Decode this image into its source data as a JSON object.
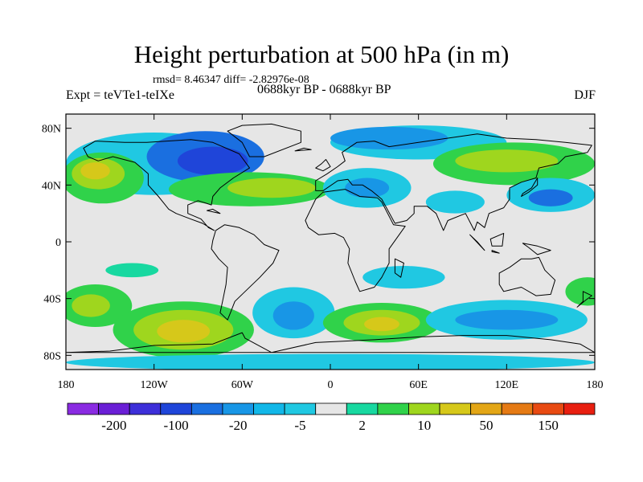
{
  "title": "Height perturbation at 500 hPa (in m)",
  "stats": "rmsd= 8.46347 diff= -2.82976e-08",
  "left_label": "Expt = teVTe1-teIXe",
  "center_label": "0688kyr BP - 0688kyr BP",
  "right_label": "DJF",
  "lat_ticks": [
    "80N",
    "40N",
    "0",
    "40S",
    "80S"
  ],
  "lon_ticks": [
    "180",
    "120W",
    "60W",
    "0",
    "60E",
    "120E",
    "180"
  ],
  "colorbar": {
    "colors": [
      "#8a2be2",
      "#6a1fd6",
      "#3d2fd9",
      "#1f45d9",
      "#1a6fe0",
      "#1896e6",
      "#12b7e8",
      "#20c8e2",
      "#e6e6e6",
      "#18d8a0",
      "#30d24a",
      "#9fd61e",
      "#d6c81a",
      "#e3a616",
      "#e57a14",
      "#e84a12",
      "#e81f10"
    ],
    "labels": [
      "-200",
      "-100",
      "-20",
      "-5",
      "2",
      "10",
      "50",
      "150"
    ]
  },
  "map_data": {
    "ocean_color": "#e6e6e6",
    "regions": [
      {
        "fill": "#20c8e2",
        "shape": "ellipse",
        "lon": -120,
        "lat": 55,
        "rx": 60,
        "ry": 22
      },
      {
        "fill": "#30d24a",
        "shape": "ellipse",
        "lon": -155,
        "lat": 45,
        "rx": 28,
        "ry": 18
      },
      {
        "fill": "#9fd61e",
        "shape": "ellipse",
        "lon": -158,
        "lat": 48,
        "rx": 18,
        "ry": 11
      },
      {
        "fill": "#d6c81a",
        "shape": "ellipse",
        "lon": -160,
        "lat": 50,
        "rx": 10,
        "ry": 6
      },
      {
        "fill": "#1a6fe0",
        "shape": "ellipse",
        "lon": -85,
        "lat": 60,
        "rx": 40,
        "ry": 18
      },
      {
        "fill": "#1f45d9",
        "shape": "ellipse",
        "lon": -80,
        "lat": 57,
        "rx": 24,
        "ry": 10
      },
      {
        "fill": "#30d24a",
        "shape": "ellipse",
        "lon": -55,
        "lat": 37,
        "rx": 55,
        "ry": 12
      },
      {
        "fill": "#9fd61e",
        "shape": "ellipse",
        "lon": -40,
        "lat": 38,
        "rx": 30,
        "ry": 7
      },
      {
        "fill": "#20c8e2",
        "shape": "ellipse",
        "lon": 60,
        "lat": 70,
        "rx": 60,
        "ry": 12
      },
      {
        "fill": "#1896e6",
        "shape": "ellipse",
        "lon": 40,
        "lat": 73,
        "rx": 40,
        "ry": 8
      },
      {
        "fill": "#20c8e2",
        "shape": "ellipse",
        "lon": 25,
        "lat": 38,
        "rx": 30,
        "ry": 14
      },
      {
        "fill": "#1896e6",
        "shape": "ellipse",
        "lon": 25,
        "lat": 38,
        "rx": 15,
        "ry": 7
      },
      {
        "fill": "#30d24a",
        "shape": "ellipse",
        "lon": 125,
        "lat": 55,
        "rx": 55,
        "ry": 15
      },
      {
        "fill": "#9fd61e",
        "shape": "ellipse",
        "lon": 120,
        "lat": 57,
        "rx": 35,
        "ry": 8
      },
      {
        "fill": "#20c8e2",
        "shape": "ellipse",
        "lon": 150,
        "lat": 33,
        "rx": 30,
        "ry": 12
      },
      {
        "fill": "#1a6fe0",
        "shape": "ellipse",
        "lon": 150,
        "lat": 31,
        "rx": 15,
        "ry": 6
      },
      {
        "fill": "#20c8e2",
        "shape": "ellipse",
        "lon": 85,
        "lat": 28,
        "rx": 20,
        "ry": 8
      },
      {
        "fill": "#18d8a0",
        "shape": "ellipse",
        "lon": -135,
        "lat": -20,
        "rx": 18,
        "ry": 5
      },
      {
        "fill": "#30d24a",
        "shape": "ellipse",
        "lon": -160,
        "lat": -45,
        "rx": 25,
        "ry": 15
      },
      {
        "fill": "#9fd61e",
        "shape": "ellipse",
        "lon": -163,
        "lat": -45,
        "rx": 13,
        "ry": 8
      },
      {
        "fill": "#30d24a",
        "shape": "ellipse",
        "lon": -100,
        "lat": -62,
        "rx": 48,
        "ry": 20
      },
      {
        "fill": "#9fd61e",
        "shape": "ellipse",
        "lon": -100,
        "lat": -62,
        "rx": 34,
        "ry": 14
      },
      {
        "fill": "#d6c81a",
        "shape": "ellipse",
        "lon": -100,
        "lat": -63,
        "rx": 18,
        "ry": 8
      },
      {
        "fill": "#20c8e2",
        "shape": "ellipse",
        "lon": -25,
        "lat": -50,
        "rx": 28,
        "ry": 18
      },
      {
        "fill": "#1896e6",
        "shape": "ellipse",
        "lon": -25,
        "lat": -52,
        "rx": 14,
        "ry": 10
      },
      {
        "fill": "#30d24a",
        "shape": "ellipse",
        "lon": 35,
        "lat": -57,
        "rx": 40,
        "ry": 14
      },
      {
        "fill": "#9fd61e",
        "shape": "ellipse",
        "lon": 35,
        "lat": -57,
        "rx": 26,
        "ry": 9
      },
      {
        "fill": "#d6c81a",
        "shape": "ellipse",
        "lon": 35,
        "lat": -58,
        "rx": 12,
        "ry": 5
      },
      {
        "fill": "#20c8e2",
        "shape": "ellipse",
        "lon": 120,
        "lat": -55,
        "rx": 55,
        "ry": 14
      },
      {
        "fill": "#1896e6",
        "shape": "ellipse",
        "lon": 120,
        "lat": -55,
        "rx": 35,
        "ry": 7
      },
      {
        "fill": "#20c8e2",
        "shape": "ellipse",
        "lon": 50,
        "lat": -25,
        "rx": 28,
        "ry": 8
      },
      {
        "fill": "#30d24a",
        "shape": "ellipse",
        "lon": 175,
        "lat": -35,
        "rx": 15,
        "ry": 10
      },
      {
        "fill": "#20c8e2",
        "shape": "ellipse",
        "lon": 0,
        "lat": -85,
        "rx": 180,
        "ry": 6
      }
    ],
    "land": [
      [
        [
          -168,
          66
        ],
        [
          -160,
          71
        ],
        [
          -140,
          70
        ],
        [
          -125,
          70
        ],
        [
          -95,
          72
        ],
        [
          -80,
          70
        ],
        [
          -62,
          62
        ],
        [
          -55,
          52
        ],
        [
          -66,
          45
        ],
        [
          -75,
          38
        ],
        [
          -80,
          32
        ],
        [
          -81,
          26
        ],
        [
          -90,
          29
        ],
        [
          -97,
          26
        ],
        [
          -97,
          20
        ],
        [
          -88,
          16
        ],
        [
          -83,
          10
        ],
        [
          -79,
          8
        ],
        [
          -87,
          13
        ],
        [
          -95,
          16
        ],
        [
          -105,
          20
        ],
        [
          -110,
          23
        ],
        [
          -117,
          32
        ],
        [
          -124,
          40
        ],
        [
          -124,
          48
        ],
        [
          -133,
          56
        ],
        [
          -148,
          60
        ],
        [
          -158,
          57
        ],
        [
          -165,
          60
        ]
      ],
      [
        [
          -78,
          8
        ],
        [
          -72,
          12
        ],
        [
          -62,
          10
        ],
        [
          -52,
          5
        ],
        [
          -45,
          -2
        ],
        [
          -35,
          -6
        ],
        [
          -39,
          -15
        ],
        [
          -48,
          -25
        ],
        [
          -58,
          -35
        ],
        [
          -65,
          -42
        ],
        [
          -68,
          -50
        ],
        [
          -70,
          -55
        ],
        [
          -75,
          -50
        ],
        [
          -73,
          -40
        ],
        [
          -71,
          -30
        ],
        [
          -70,
          -18
        ],
        [
          -76,
          -12
        ],
        [
          -81,
          -5
        ],
        [
          -80,
          1
        ]
      ],
      [
        [
          -55,
          60
        ],
        [
          -45,
          60
        ],
        [
          -20,
          70
        ],
        [
          -20,
          78
        ],
        [
          -40,
          83
        ],
        [
          -60,
          82
        ],
        [
          -70,
          78
        ],
        [
          -60,
          70
        ]
      ],
      [
        [
          -10,
          36
        ],
        [
          -10,
          43
        ],
        [
          -2,
          48
        ],
        [
          5,
          53
        ],
        [
          10,
          57
        ],
        [
          8,
          63
        ],
        [
          18,
          70
        ],
        [
          30,
          71
        ],
        [
          40,
          67
        ],
        [
          60,
          70
        ],
        [
          80,
          73
        ],
        [
          100,
          76
        ],
        [
          120,
          73
        ],
        [
          140,
          72
        ],
        [
          160,
          70
        ],
        [
          178,
          68
        ],
        [
          175,
          63
        ],
        [
          160,
          60
        ],
        [
          155,
          55
        ],
        [
          142,
          52
        ],
        [
          140,
          45
        ],
        [
          130,
          42
        ],
        [
          122,
          38
        ],
        [
          122,
          30
        ],
        [
          118,
          24
        ],
        [
          108,
          20
        ],
        [
          105,
          10
        ],
        [
          100,
          14
        ],
        [
          98,
          8
        ],
        [
          92,
          20
        ],
        [
          80,
          15
        ],
        [
          77,
          8
        ],
        [
          72,
          20
        ],
        [
          66,
          25
        ],
        [
          57,
          25
        ],
        [
          57,
          20
        ],
        [
          52,
          15
        ],
        [
          44,
          13
        ],
        [
          35,
          30
        ],
        [
          28,
          36
        ],
        [
          22,
          40
        ],
        [
          15,
          40
        ],
        [
          12,
          44
        ],
        [
          5,
          43
        ],
        [
          -5,
          36
        ]
      ],
      [
        [
          -17,
          15
        ],
        [
          -10,
          30
        ],
        [
          -5,
          35
        ],
        [
          10,
          37
        ],
        [
          20,
          32
        ],
        [
          32,
          31
        ],
        [
          35,
          28
        ],
        [
          43,
          12
        ],
        [
          51,
          11
        ],
        [
          40,
          -5
        ],
        [
          40,
          -15
        ],
        [
          35,
          -25
        ],
        [
          30,
          -32
        ],
        [
          20,
          -35
        ],
        [
          17,
          -28
        ],
        [
          12,
          -15
        ],
        [
          13,
          -5
        ],
        [
          9,
          3
        ],
        [
          3,
          6
        ],
        [
          -8,
          5
        ],
        [
          -15,
          10
        ]
      ],
      [
        [
          115,
          -22
        ],
        [
          122,
          -18
        ],
        [
          130,
          -12
        ],
        [
          137,
          -12
        ],
        [
          142,
          -11
        ],
        [
          146,
          -20
        ],
        [
          153,
          -27
        ],
        [
          150,
          -37
        ],
        [
          140,
          -38
        ],
        [
          130,
          -32
        ],
        [
          118,
          -35
        ],
        [
          115,
          -30
        ]
      ],
      [
        [
          -180,
          -78
        ],
        [
          -150,
          -77
        ],
        [
          -120,
          -73
        ],
        [
          -80,
          -72
        ],
        [
          -60,
          -64
        ],
        [
          -58,
          -68
        ],
        [
          -40,
          -78
        ],
        [
          -10,
          -71
        ],
        [
          30,
          -69
        ],
        [
          60,
          -67
        ],
        [
          90,
          -66
        ],
        [
          120,
          -66
        ],
        [
          150,
          -69
        ],
        [
          170,
          -72
        ],
        [
          180,
          -78
        ]
      ]
    ],
    "islands": [
      [
        [
          -10,
          52
        ],
        [
          -6,
          55
        ],
        [
          -3,
          58
        ],
        [
          0,
          53
        ],
        [
          -5,
          50
        ]
      ],
      [
        [
          130,
          32
        ],
        [
          135,
          35
        ],
        [
          141,
          40
        ],
        [
          141,
          45
        ],
        [
          137,
          38
        ],
        [
          131,
          34
        ]
      ],
      [
        [
          95,
          5
        ],
        [
          105,
          -6
        ],
        [
          100,
          0
        ]
      ],
      [
        [
          110,
          -7
        ],
        [
          115,
          -8
        ],
        [
          110,
          -6
        ]
      ],
      [
        [
          109,
          2
        ],
        [
          118,
          6
        ],
        [
          117,
          -3
        ],
        [
          110,
          -3
        ]
      ],
      [
        [
          131,
          -1
        ],
        [
          141,
          -3
        ],
        [
          150,
          -6
        ],
        [
          141,
          -9
        ],
        [
          135,
          -4
        ]
      ],
      [
        [
          44,
          -12
        ],
        [
          50,
          -15
        ],
        [
          48,
          -25
        ],
        [
          44,
          -22
        ]
      ],
      [
        [
          172,
          -35
        ],
        [
          178,
          -38
        ],
        [
          174,
          -41
        ],
        [
          168,
          -46
        ],
        [
          172,
          -42
        ]
      ],
      [
        [
          -24,
          64
        ],
        [
          -13,
          65
        ],
        [
          -18,
          66
        ]
      ],
      [
        [
          -84,
          22
        ],
        [
          -75,
          20
        ],
        [
          -80,
          23
        ]
      ]
    ]
  }
}
